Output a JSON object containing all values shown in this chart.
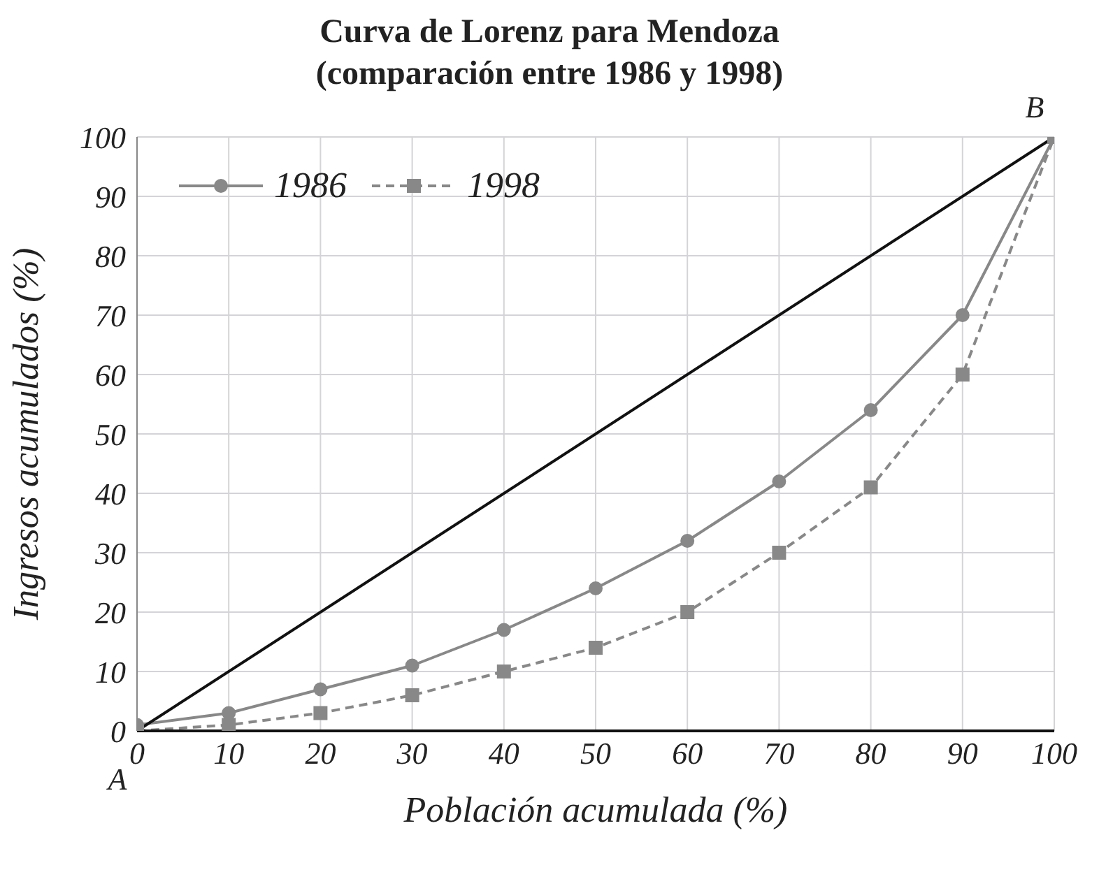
{
  "chart_data": {
    "type": "line",
    "title": "Curva de Lorenz para Mendoza",
    "subtitle": "(comparación entre 1986 y 1998)",
    "xlabel": "Población acumulada (%)",
    "ylabel": "Ingresos acumulados (%)",
    "x": [
      0,
      10,
      20,
      30,
      40,
      50,
      60,
      70,
      80,
      90,
      100
    ],
    "series": [
      {
        "name": "1986",
        "color": "#888888",
        "marker": "circle",
        "line_style": "solid",
        "values": [
          1,
          3,
          7,
          11,
          17,
          24,
          32,
          42,
          54,
          70,
          100
        ]
      },
      {
        "name": "1998",
        "color": "#888888",
        "marker": "square",
        "line_style": "dashed",
        "values": [
          0,
          1,
          3,
          6,
          10,
          14,
          20,
          30,
          41,
          60,
          100
        ]
      },
      {
        "color": "#111111",
        "marker": "none",
        "line_style": "solid",
        "x": [
          0,
          100
        ],
        "values": [
          0,
          100
        ]
      }
    ],
    "annotations": [
      {
        "text": "A",
        "x": 0,
        "y": 0
      },
      {
        "text": "B",
        "x": 100,
        "y": 100
      }
    ],
    "xlim": [
      0,
      100
    ],
    "xticks": [
      0,
      10,
      20,
      30,
      40,
      50,
      60,
      70,
      80,
      90,
      100
    ],
    "ylim": [
      0,
      100
    ],
    "yticks": [
      0,
      10,
      20,
      30,
      40,
      50,
      60,
      70,
      80,
      90,
      100
    ],
    "grid": true,
    "legend": "top left"
  }
}
